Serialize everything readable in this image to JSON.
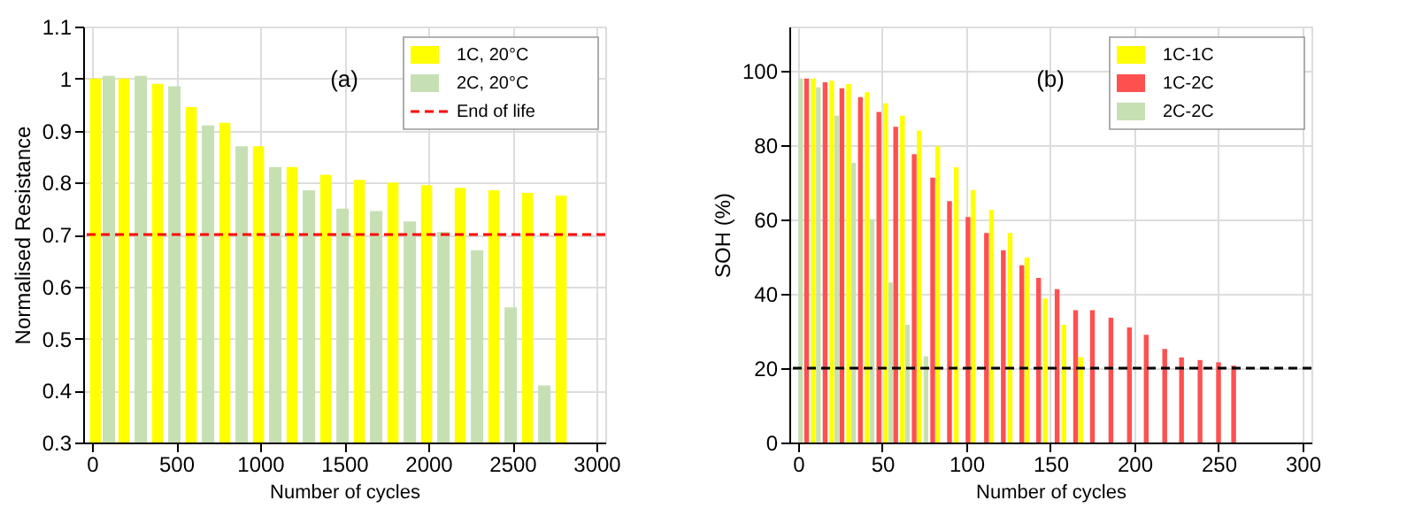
{
  "chart_data": [
    {
      "type": "bar",
      "xlabel": "Number of cycles",
      "ylabel": "Normalised Resistance",
      "annotations": [
        "(a)"
      ],
      "xlim": [
        0,
        3000
      ],
      "ylim": [
        0.3,
        1.1
      ],
      "xticks": [
        0,
        500,
        1000,
        1500,
        2000,
        2500,
        3000
      ],
      "yticks": [
        0.3,
        0.4,
        0.5,
        0.6,
        0.7,
        0.8,
        0.9,
        1,
        1.1
      ],
      "grid": true,
      "legend": "top right",
      "series": [
        {
          "name": "1C, 20°C",
          "color": "#ffff00",
          "x": [
            20,
            190,
            390,
            590,
            790,
            990,
            1190,
            1390,
            1590,
            1790,
            1990,
            2190,
            2390,
            2590,
            2790
          ],
          "values": [
            1.0,
            1.0,
            0.99,
            0.945,
            0.915,
            0.87,
            0.83,
            0.815,
            0.805,
            0.8,
            0.795,
            0.79,
            0.785,
            0.78,
            0.775
          ]
        },
        {
          "name": "2C, 20°C",
          "color": "#c6e0b4",
          "x": [
            100,
            290,
            490,
            690,
            890,
            1090,
            1290,
            1490,
            1690,
            1890,
            2090,
            2290,
            2490,
            2690
          ],
          "values": [
            1.005,
            1.005,
            0.985,
            0.91,
            0.87,
            0.83,
            0.785,
            0.75,
            0.745,
            0.725,
            0.705,
            0.67,
            0.56,
            0.41
          ]
        }
      ],
      "ref_lines": [
        {
          "axis": "y",
          "value": 0.7,
          "label": "End of life",
          "color": "#ff0000",
          "line_style": "dashed"
        }
      ]
    },
    {
      "type": "bar",
      "xlabel": "Number of cycles",
      "ylabel": "SOH (%)",
      "annotations": [
        "(b)"
      ],
      "xlim": [
        0,
        300
      ],
      "ylim": [
        0,
        112
      ],
      "xticks": [
        0,
        50,
        100,
        150,
        200,
        250,
        300
      ],
      "yticks": [
        0,
        20,
        40,
        60,
        80,
        100
      ],
      "grid": true,
      "legend": "top right",
      "series": [
        {
          "name": "1C-1C",
          "color": "#ffff00",
          "x": [
            9,
            20,
            30,
            41,
            52,
            62,
            72,
            83,
            94,
            104,
            115,
            126,
            136,
            147,
            158,
            168
          ],
          "values": [
            98,
            97.4,
            96.5,
            94.3,
            91.3,
            88,
            84,
            79.8,
            74.1,
            68,
            62.6,
            56.4,
            49.8,
            38.8,
            31.7,
            23
          ]
        },
        {
          "name": "1C-2C",
          "color": "#ff5050",
          "x": [
            5,
            16,
            26,
            37,
            48,
            58,
            69,
            80,
            90,
            101,
            112,
            122,
            133,
            143,
            154,
            165,
            175,
            186,
            197,
            207,
            218,
            228,
            239,
            250,
            259
          ],
          "values": [
            98,
            97,
            95.4,
            93,
            89,
            85,
            77.6,
            71.3,
            65,
            60.7,
            56.4,
            51.8,
            47.7,
            44.3,
            41.3,
            35.6,
            35.6,
            33.6,
            31,
            29,
            25.2,
            22.9,
            22.2,
            21.6,
            20.7
          ]
        },
        {
          "name": "2C-2C",
          "color": "#c6e0b4",
          "x": [
            1.5,
            12,
            23,
            33,
            44,
            55,
            65,
            76
          ],
          "values": [
            98,
            95.6,
            88,
            75.3,
            60.1,
            43.1,
            31.7,
            23.2
          ]
        }
      ],
      "ref_lines": [
        {
          "axis": "y",
          "value": 20,
          "color": "#000000",
          "line_style": "dashed"
        }
      ]
    }
  ]
}
